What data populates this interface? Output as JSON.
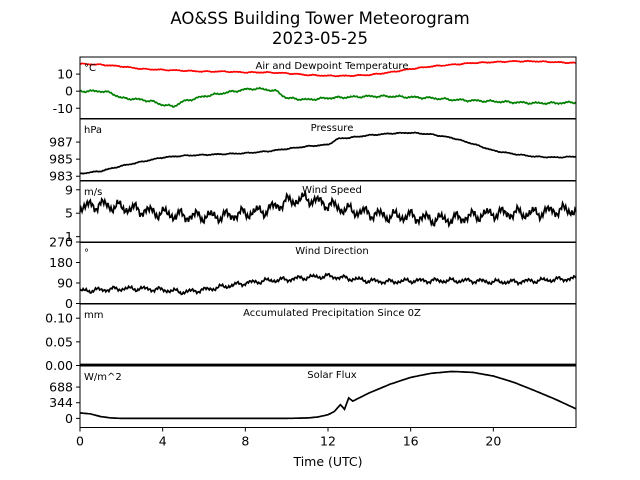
{
  "figure": {
    "title_line1": "AO&SS Building Tower Meteorogram",
    "title_line2": "2023-05-25",
    "xlabel": "Time (UTC)",
    "x_ticks": [
      0,
      4,
      8,
      12,
      16,
      20
    ],
    "xlim": [
      0,
      24
    ]
  },
  "chart_data": [
    {
      "type": "line",
      "title": "Air and Dewpoint Temperature",
      "unit_label": "°C",
      "ylim": [
        -16,
        20
      ],
      "yticks": [
        -10,
        0,
        10
      ],
      "series": [
        {
          "color": "#ff0000",
          "x": [
            0,
            1,
            2,
            3,
            4,
            5,
            6,
            7,
            8,
            9,
            10,
            11,
            12,
            13,
            14,
            15,
            16,
            17,
            18,
            19,
            20,
            21,
            22,
            23,
            24
          ],
          "y": [
            16,
            15.5,
            14.5,
            13,
            12.5,
            12,
            11.5,
            11.5,
            11,
            11,
            10.5,
            9.5,
            9,
            9,
            9.5,
            11,
            13,
            14.5,
            15.5,
            16.5,
            17,
            17.5,
            17.5,
            17,
            16.5
          ]
        },
        {
          "color": "#008000",
          "x": [
            0,
            1,
            1.5,
            2,
            3,
            3.5,
            4,
            4.5,
            5,
            6,
            7,
            8,
            8.5,
            9,
            9.5,
            10,
            11,
            12,
            13,
            14,
            15,
            16,
            17,
            18,
            19,
            20,
            21,
            22,
            23,
            24
          ],
          "y": [
            0,
            0,
            -1,
            -4,
            -5,
            -6,
            -8,
            -9,
            -6,
            -3,
            -1,
            1,
            1.5,
            1,
            0,
            -4,
            -5,
            -4,
            -3.5,
            -3,
            -3,
            -3.5,
            -4,
            -5,
            -5.5,
            -6,
            -6.5,
            -7,
            -7,
            -6.5
          ]
        }
      ]
    },
    {
      "type": "line",
      "title": "Pressure",
      "unit_label": "hPa",
      "ylim": [
        982.5,
        989.7
      ],
      "yticks": [
        983,
        985,
        987
      ],
      "series": [
        {
          "color": "#000000",
          "x": [
            0,
            1,
            2,
            3,
            4,
            5,
            6,
            7,
            8,
            9,
            10,
            11,
            12,
            12.5,
            13,
            14,
            15,
            16,
            17,
            18,
            19,
            20,
            21,
            22,
            23,
            24
          ],
          "y": [
            983.3,
            983.6,
            984.2,
            984.7,
            985.2,
            985.4,
            985.5,
            985.6,
            985.7,
            985.9,
            986.2,
            986.5,
            986.7,
            987.4,
            987.5,
            987.8,
            988.0,
            988.1,
            987.9,
            987.5,
            986.8,
            986.0,
            985.6,
            985.3,
            985.2,
            985.3
          ]
        }
      ]
    },
    {
      "type": "line",
      "title": "Wind Speed",
      "unit_label": "m/s",
      "ylim": [
        0,
        10.5
      ],
      "yticks": [
        1,
        5,
        9
      ],
      "series": [
        {
          "color": "#000000",
          "x": [
            0,
            1,
            2,
            3,
            4,
            5,
            6,
            7,
            8,
            9,
            10,
            11,
            12,
            13,
            14,
            15,
            16,
            17,
            18,
            19,
            20,
            21,
            22,
            23,
            24
          ],
          "y": [
            6,
            6.5,
            6,
            5.5,
            5,
            4.5,
            4.5,
            4.5,
            5,
            5.5,
            7,
            7.5,
            6.5,
            5.5,
            5,
            4.5,
            4.5,
            4,
            4,
            4.5,
            5,
            5,
            5,
            5.5,
            5.5
          ]
        }
      ]
    },
    {
      "type": "line",
      "title": "Wind Direction",
      "unit_label": "°",
      "ylim": [
        0,
        270
      ],
      "yticks": [
        0,
        90,
        180,
        270
      ],
      "series": [
        {
          "color": "#000000",
          "x": [
            0,
            1,
            2,
            3,
            4,
            5,
            6,
            7,
            8,
            9,
            10,
            11,
            12,
            13,
            14,
            15,
            16,
            17,
            18,
            19,
            20,
            21,
            22,
            23,
            24
          ],
          "y": [
            55,
            60,
            65,
            65,
            60,
            50,
            60,
            75,
            90,
            100,
            105,
            115,
            120,
            110,
            100,
            95,
            100,
            100,
            100,
            100,
            95,
            95,
            100,
            105,
            110
          ]
        }
      ]
    },
    {
      "type": "line",
      "title": "Accumulated Precipitation Since 0Z",
      "unit_label": "mm",
      "ylim": [
        0,
        0.13
      ],
      "yticks": [
        0.0,
        0.05,
        0.1
      ],
      "ytick_labels": [
        "0.00",
        "0.05",
        "0.10"
      ],
      "series": [
        {
          "color": "#000000",
          "x": [
            0,
            24
          ],
          "y": [
            0,
            0
          ]
        }
      ]
    },
    {
      "type": "line",
      "title": "Solar Flux",
      "unit_label": "W/m^2",
      "ylim": [
        -200,
        1150
      ],
      "yticks": [
        0,
        344,
        688
      ],
      "series": [
        {
          "color": "#000000",
          "x": [
            0,
            0.5,
            1,
            1.5,
            2,
            4,
            6,
            8,
            10,
            11,
            11.5,
            12,
            12.3,
            12.6,
            12.8,
            13,
            13.2,
            14,
            15,
            16,
            17,
            18,
            19,
            20,
            21,
            22,
            23,
            24
          ],
          "y": [
            120,
            100,
            40,
            10,
            0,
            0,
            0,
            0,
            0,
            10,
            30,
            80,
            150,
            300,
            200,
            450,
            380,
            560,
            750,
            900,
            990,
            1030,
            1010,
            930,
            790,
            610,
            420,
            210
          ]
        }
      ]
    }
  ]
}
